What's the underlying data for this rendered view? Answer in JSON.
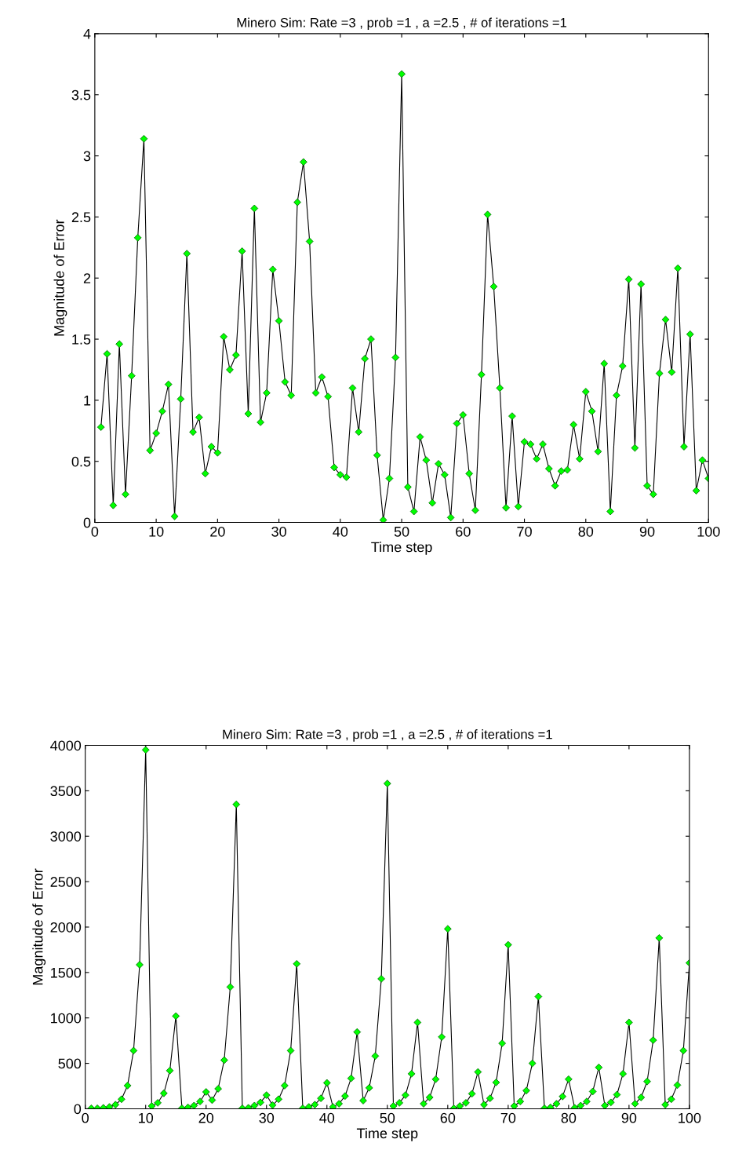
{
  "chart_data": [
    {
      "type": "line",
      "title": "Minero Sim: Rate =3 , prob =1 , a =2.5 , # of iterations =1",
      "xlabel": "Time step",
      "ylabel": "Magnitude of Error",
      "marker": "diamond",
      "line_style": "solid",
      "grid": false,
      "x": [
        1,
        2,
        3,
        4,
        5,
        6,
        7,
        8,
        9,
        10,
        11,
        12,
        13,
        14,
        15,
        16,
        17,
        18,
        19,
        20,
        21,
        22,
        23,
        24,
        25,
        26,
        27,
        28,
        29,
        30,
        31,
        32,
        33,
        34,
        35,
        36,
        37,
        38,
        39,
        40,
        41,
        42,
        43,
        44,
        45,
        46,
        47,
        48,
        49,
        50,
        51,
        52,
        53,
        54,
        55,
        56,
        57,
        58,
        59,
        60,
        61,
        62,
        63,
        64,
        65,
        66,
        67,
        68,
        69,
        70,
        71,
        72,
        73,
        74,
        75,
        76,
        77,
        78,
        79,
        80,
        81,
        82,
        83,
        84,
        85,
        86,
        87,
        88,
        89,
        90,
        91,
        92,
        93,
        94,
        95,
        96,
        97,
        98,
        99,
        100
      ],
      "series": [
        {
          "color": "#00ff00",
          "values": [
            0.78,
            1.38,
            0.14,
            1.46,
            0.23,
            1.2,
            2.33,
            3.14,
            0.59,
            0.73,
            0.91,
            1.13,
            0.05,
            1.01,
            2.2,
            0.74,
            0.86,
            0.4,
            0.62,
            0.57,
            1.52,
            1.25,
            1.37,
            2.22,
            0.89,
            2.57,
            0.82,
            1.06,
            2.07,
            1.65,
            1.15,
            1.04,
            2.62,
            2.95,
            2.3,
            1.06,
            1.19,
            1.03,
            0.45,
            0.39,
            0.37,
            1.1,
            0.74,
            1.34,
            1.5,
            0.55,
            0.02,
            0.36,
            1.35,
            3.67,
            0.29,
            0.09,
            0.7,
            0.51,
            0.16,
            0.48,
            0.39,
            0.04,
            0.81,
            0.88,
            0.4,
            0.1,
            1.21,
            2.52,
            1.93,
            1.1,
            0.12,
            0.87,
            0.13,
            0.66,
            0.64,
            0.52,
            0.64,
            0.44,
            0.3,
            0.42,
            0.43,
            0.8,
            0.52,
            1.07,
            0.91,
            0.58,
            1.3,
            0.09,
            1.04,
            1.28,
            1.99,
            0.61,
            1.95,
            0.3,
            0.23,
            1.22,
            1.66,
            1.23,
            2.08,
            0.62,
            1.54,
            0.26,
            0.51,
            0.36
          ]
        }
      ],
      "xlim": [
        0,
        100
      ],
      "xticks": [
        0,
        10,
        20,
        30,
        40,
        50,
        60,
        70,
        80,
        90,
        100
      ],
      "ylim": [
        0,
        4
      ],
      "yticks": [
        0,
        0.5,
        1,
        1.5,
        2,
        2.5,
        3,
        3.5,
        4
      ]
    },
    {
      "type": "line",
      "title": "Minero Sim: Rate =3 , prob =1 , a =2.5 , # of iterations =1",
      "xlabel": "Time step",
      "ylabel": "Magnitude of Error",
      "marker": "diamond",
      "line_style": "solid",
      "grid": false,
      "x": [
        1,
        2,
        3,
        4,
        5,
        6,
        7,
        8,
        9,
        10,
        11,
        12,
        13,
        14,
        15,
        16,
        17,
        18,
        19,
        20,
        21,
        22,
        23,
        24,
        25,
        26,
        27,
        28,
        29,
        30,
        31,
        32,
        33,
        34,
        35,
        36,
        37,
        38,
        39,
        40,
        41,
        42,
        43,
        44,
        45,
        46,
        47,
        48,
        49,
        50,
        51,
        52,
        53,
        54,
        55,
        56,
        57,
        58,
        59,
        60,
        61,
        62,
        63,
        64,
        65,
        66,
        67,
        68,
        69,
        70,
        71,
        72,
        73,
        74,
        75,
        76,
        77,
        78,
        79,
        80,
        81,
        82,
        83,
        84,
        85,
        86,
        87,
        88,
        89,
        90,
        91,
        92,
        93,
        94,
        95,
        96,
        97,
        98,
        99,
        100
      ],
      "series": [
        {
          "color": "#00ff00",
          "values": [
            5,
            5,
            10,
            20,
            45,
            105,
            255,
            640,
            1585,
            3950,
            30,
            65,
            170,
            420,
            1020,
            5,
            15,
            35,
            80,
            185,
            95,
            220,
            535,
            1340,
            3350,
            5,
            10,
            35,
            70,
            150,
            40,
            105,
            255,
            640,
            1595,
            5,
            20,
            45,
            115,
            285,
            20,
            55,
            140,
            335,
            845,
            90,
            230,
            580,
            1430,
            3580,
            30,
            65,
            150,
            385,
            950,
            55,
            125,
            325,
            790,
            1980,
            5,
            30,
            65,
            165,
            405,
            45,
            115,
            290,
            720,
            1805,
            30,
            80,
            200,
            500,
            1235,
            5,
            15,
            55,
            135,
            325,
            10,
            35,
            80,
            190,
            455,
            35,
            70,
            155,
            385,
            950,
            55,
            125,
            300,
            755,
            1880,
            45,
            105,
            260,
            640,
            1605
          ]
        }
      ],
      "xlim": [
        0,
        100
      ],
      "xticks": [
        0,
        10,
        20,
        30,
        40,
        50,
        60,
        70,
        80,
        90,
        100
      ],
      "ylim": [
        0,
        4000
      ],
      "yticks": [
        0,
        500,
        1000,
        1500,
        2000,
        2500,
        3000,
        3500,
        4000
      ]
    }
  ]
}
